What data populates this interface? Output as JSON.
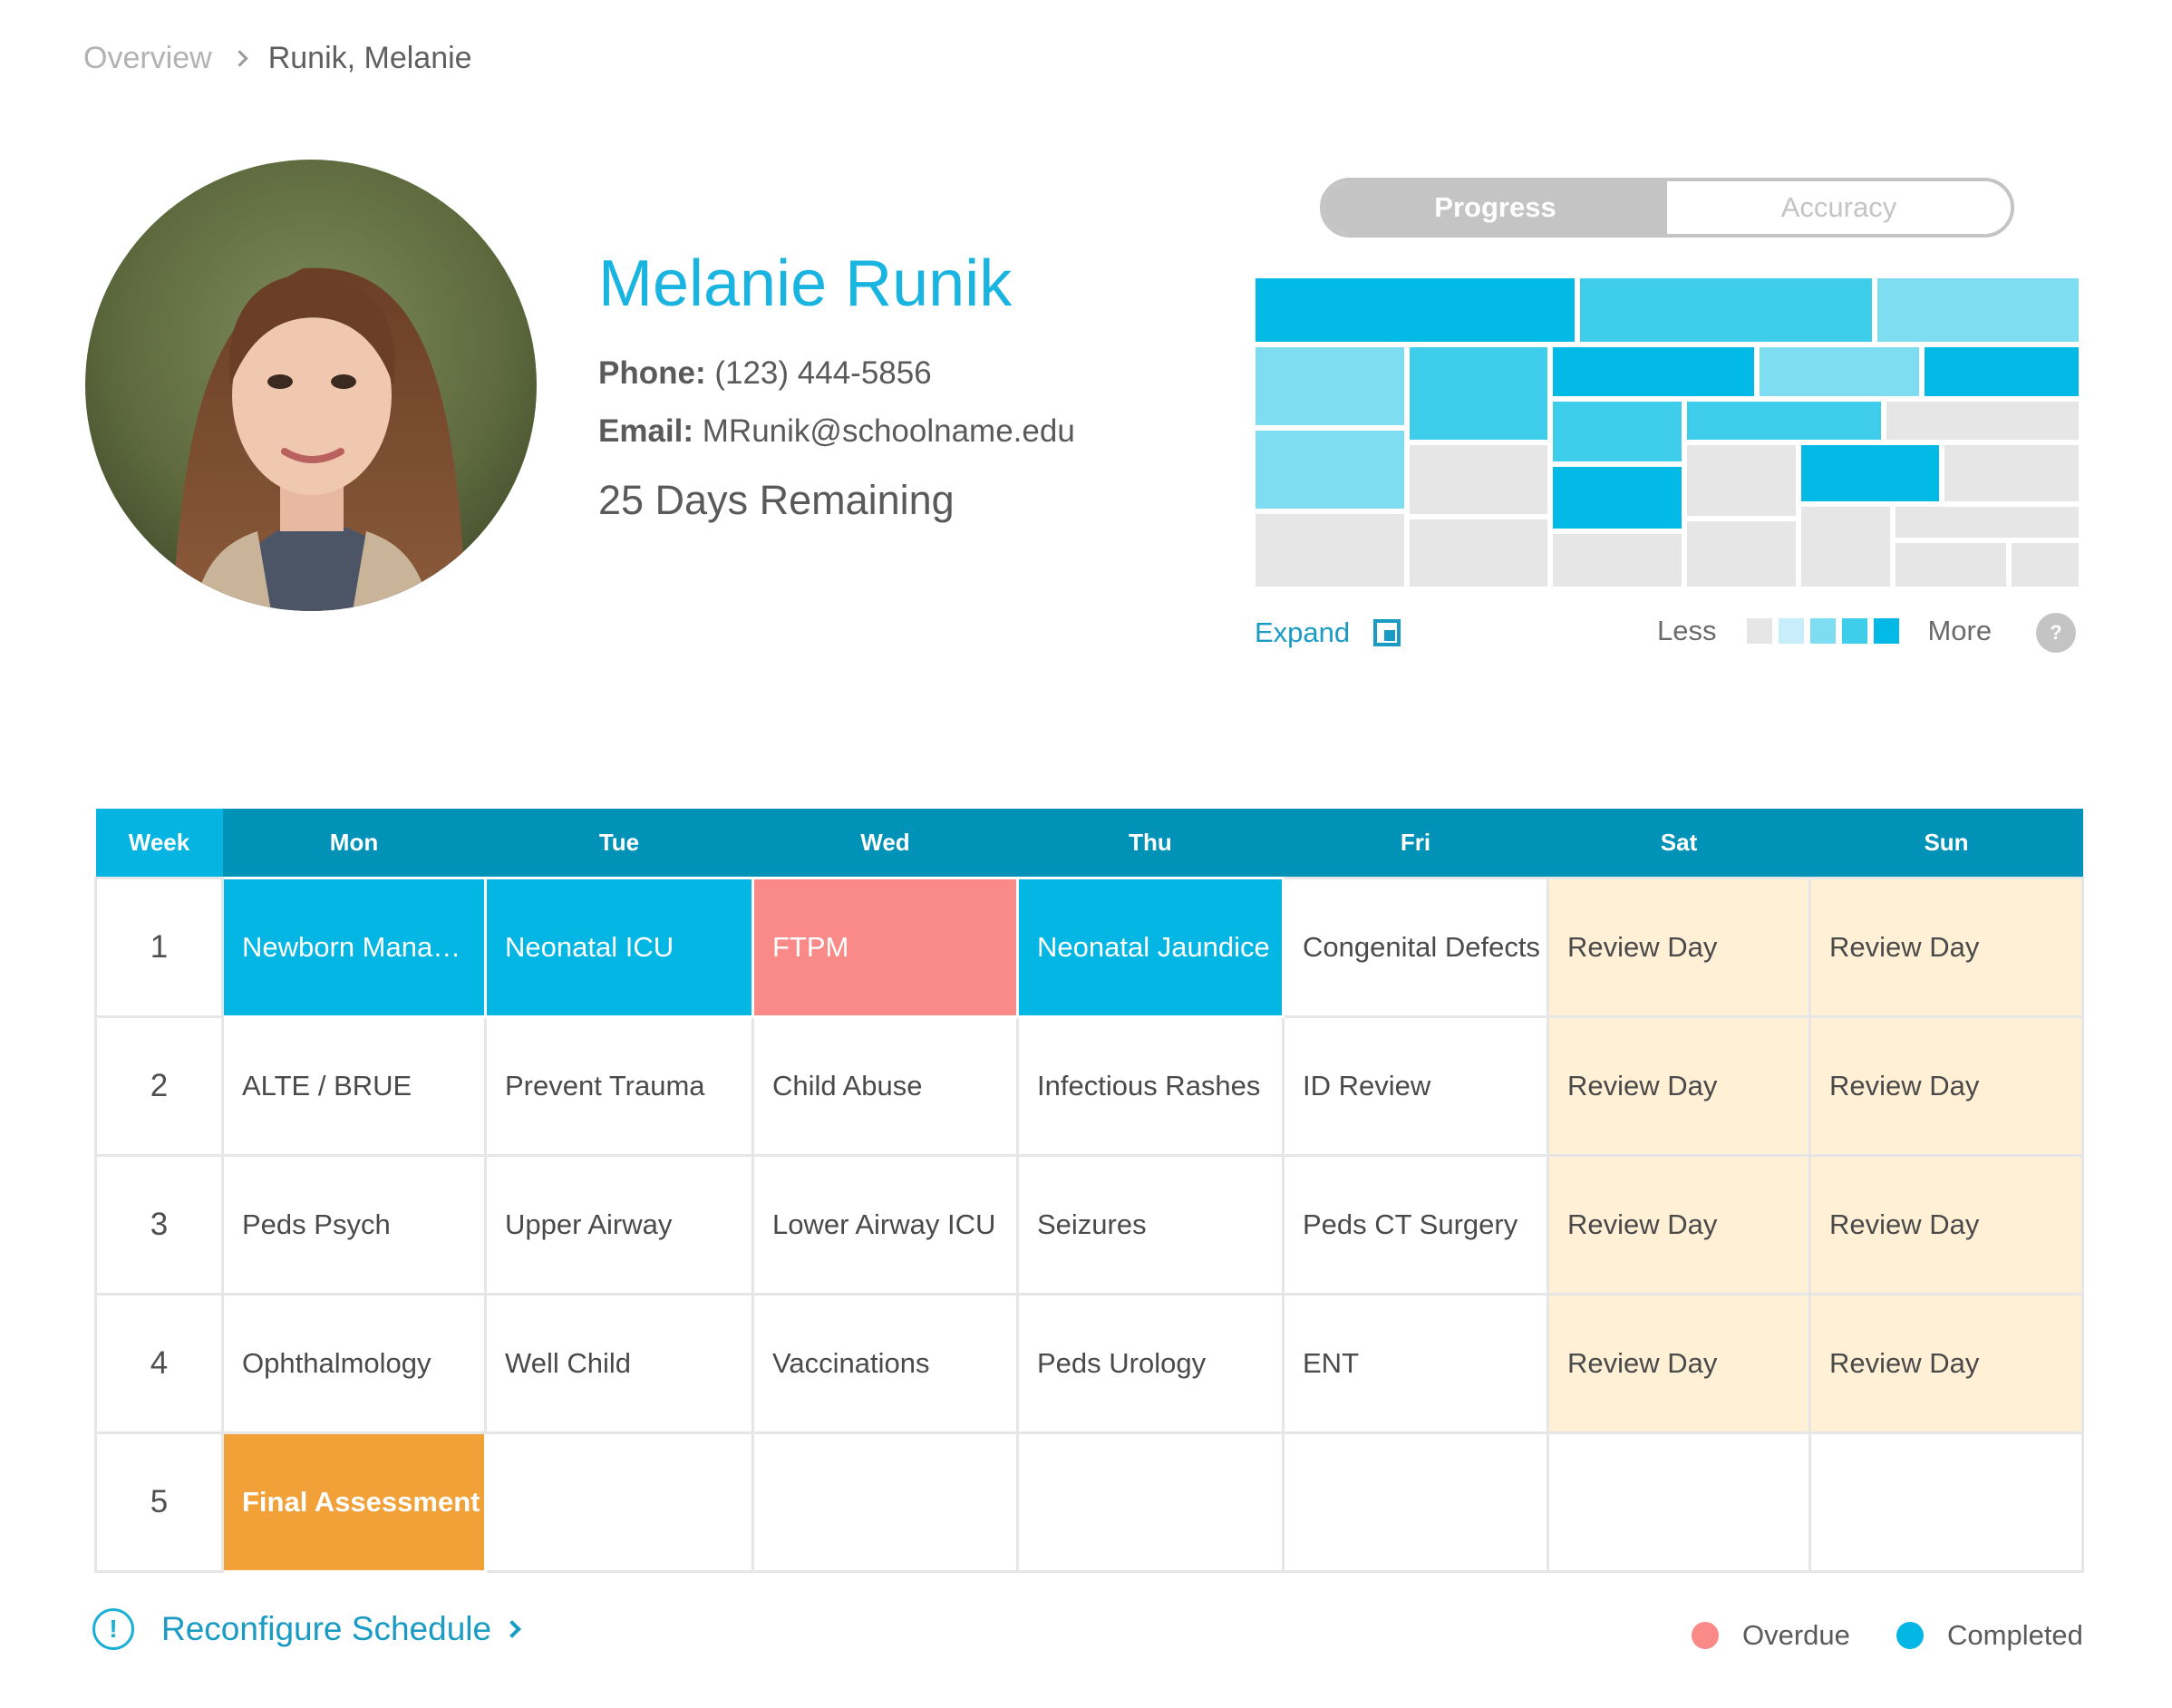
{
  "breadcrumb": {
    "root": "Overview",
    "current": "Runik, Melanie"
  },
  "profile": {
    "name": "Melanie Runik",
    "phone_label": "Phone:",
    "phone": "(123) 444-5856",
    "email_label": "Email:",
    "email": "MRunik@schoolname.edu",
    "days_remaining": "25 Days Remaining"
  },
  "toggle": {
    "active": "Progress",
    "inactive": "Accuracy"
  },
  "heatmap": {
    "expand_label": "Expand",
    "less_label": "Less",
    "more_label": "More",
    "help": "?",
    "scale_colors": [
      "#e6e6e6",
      "#c7eefa",
      "#7fddf2",
      "#3fcdec",
      "#03b9e6"
    ]
  },
  "schedule": {
    "headers": [
      "Week",
      "Mon",
      "Tue",
      "Wed",
      "Thu",
      "Fri",
      "Sat",
      "Sun"
    ],
    "rows": [
      {
        "week": "1",
        "cells": [
          "Newborn Mana…",
          "Neonatal ICU",
          "FTPM",
          "Neonatal Jaundice",
          "Congenital Defects",
          "Review Day",
          "Review Day"
        ]
      },
      {
        "week": "2",
        "cells": [
          "ALTE / BRUE",
          "Prevent Trauma",
          "Child Abuse",
          "Infectious Rashes",
          "ID Review",
          "Review Day",
          "Review Day"
        ]
      },
      {
        "week": "3",
        "cells": [
          "Peds Psych",
          "Upper Airway",
          "Lower Airway ICU",
          "Seizures",
          "Peds CT Surgery",
          "Review Day",
          "Review Day"
        ]
      },
      {
        "week": "4",
        "cells": [
          "Ophthalmology",
          "Well Child",
          "Vaccinations",
          "Peds Urology",
          "ENT",
          "Review Day",
          "Review Day"
        ]
      },
      {
        "week": "5",
        "cells": [
          "Final Assessment",
          "",
          "",
          "",
          "",
          "",
          ""
        ]
      }
    ]
  },
  "footer": {
    "alert": "!",
    "reconfigure_label": "Reconfigure Schedule",
    "legend_overdue": "Overdue",
    "legend_completed": "Completed",
    "overdue_color": "#f98a87",
    "completed_color": "#03b6e3"
  }
}
